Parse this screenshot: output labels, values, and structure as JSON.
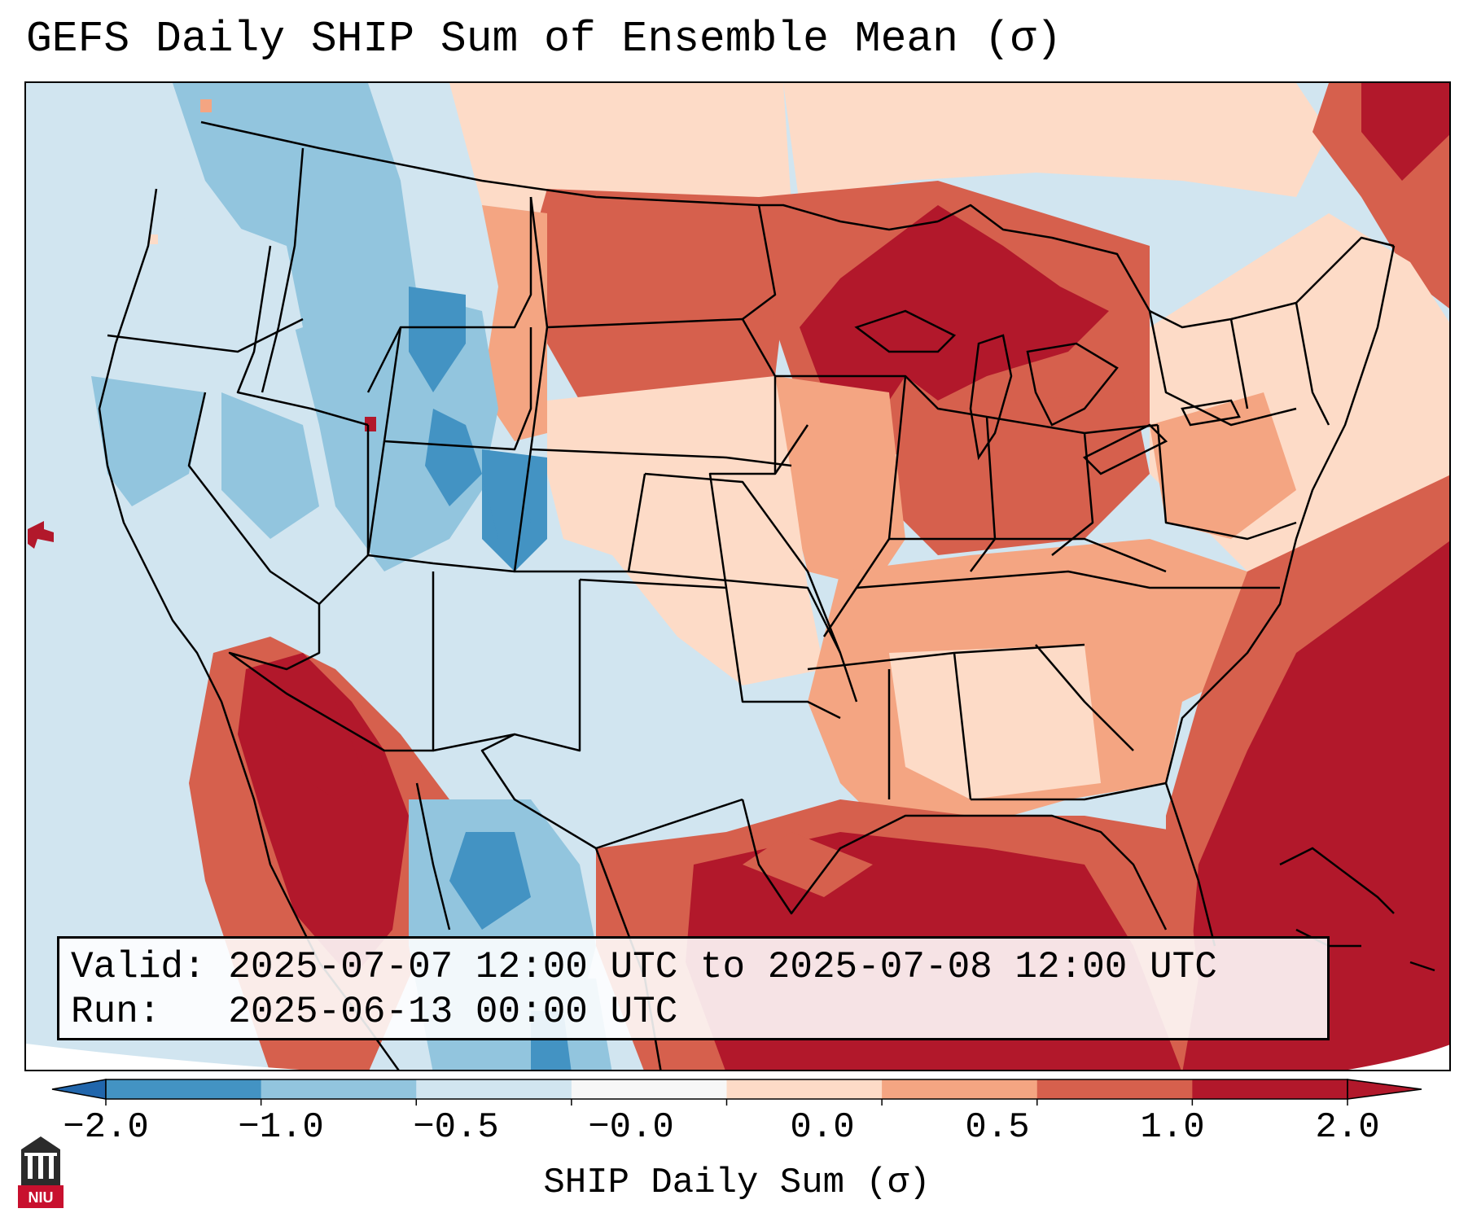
{
  "title": "GEFS Daily SHIP Sum of Ensemble Mean (σ)",
  "info": {
    "valid_line": "Valid: 2025-07-07 12:00 UTC to 2025-07-08 12:00 UTC",
    "run_line": "Run:   2025-06-13 00:00 UTC"
  },
  "colorbar": {
    "title": "SHIP Daily Sum (σ)",
    "tick_labels": [
      "−2.0",
      "−1.0",
      "−0.5",
      "−0.0",
      "0.0",
      "0.5",
      "1.0",
      "2.0"
    ],
    "bin_colors": [
      "#4393c3",
      "#92c5de",
      "#d1e5f0",
      "#f7f7f7",
      "#fddbc7",
      "#f4a582",
      "#d6604d",
      "#b2182b"
    ],
    "under_color": "#2166ac",
    "over_color": "#b2182b",
    "extend": "both"
  },
  "logo": {
    "text": "NIU",
    "name": "niu-logo"
  },
  "colors": {
    "strong_negative": "#4393c3",
    "moderate_negative": "#92c5de",
    "weak_negative": "#d1e5f0",
    "weak_positive": "#fddbc7",
    "moderate_positive": "#f4a582",
    "strong_positive": "#d6604d",
    "very_strong_positive": "#b2182b"
  }
}
